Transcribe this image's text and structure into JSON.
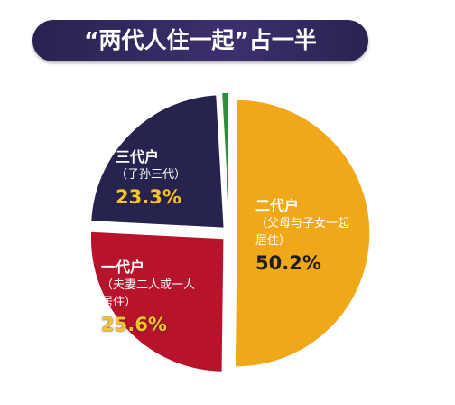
{
  "chart_data": {
    "type": "pie",
    "title": "“两代人住一起”占一半",
    "categories": [
      "二代户",
      "一代户",
      "三代户",
      null
    ],
    "descriptions": [
      "（父母与子女一起居住）",
      "（夫妻二人或一人居住）",
      "（子孙三代）",
      null
    ],
    "values": [
      50.2,
      25.6,
      23.3,
      0.9
    ],
    "value_labels": [
      "50.2%",
      "25.6%",
      "23.3%",
      null
    ],
    "colors": [
      "#f0a818",
      "#b7142c",
      "#27234f",
      "#2f8e3c"
    ]
  }
}
